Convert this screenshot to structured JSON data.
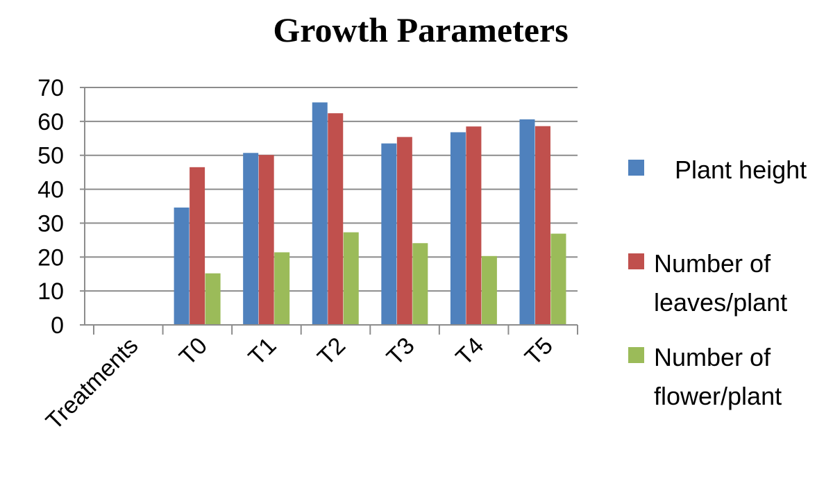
{
  "chart_data": {
    "type": "bar",
    "title": "Growth Parameters",
    "categories": [
      "Treatments",
      "T0",
      "T1",
      "T2",
      "T3",
      "T4",
      "T5"
    ],
    "series": [
      {
        "name": "Plant height",
        "color": "#4F81BD",
        "values": [
          null,
          34.6,
          50.7,
          65.6,
          53.5,
          56.8,
          60.6
        ]
      },
      {
        "name": "Number of leaves/plant",
        "color": "#C0504D",
        "values": [
          null,
          46.5,
          50.1,
          62.4,
          55.4,
          58.5,
          58.6
        ]
      },
      {
        "name": "Number of flower/plant",
        "color": "#9BBB59",
        "values": [
          null,
          15.2,
          21.4,
          27.3,
          24.1,
          20.3,
          26.9
        ]
      }
    ],
    "ylim": [
      0,
      70
    ],
    "yticks": [
      0,
      10,
      20,
      30,
      40,
      50,
      60,
      70
    ],
    "grid": true,
    "legend_position": "right"
  },
  "legend": {
    "items": [
      {
        "lines": [
          "Plant height"
        ],
        "color": "#4F81BD"
      },
      {
        "lines": [
          "Number of",
          "leaves/plant"
        ],
        "color": "#C0504D"
      },
      {
        "lines": [
          "Number of",
          "flower/plant"
        ],
        "color": "#9BBB59"
      }
    ]
  }
}
